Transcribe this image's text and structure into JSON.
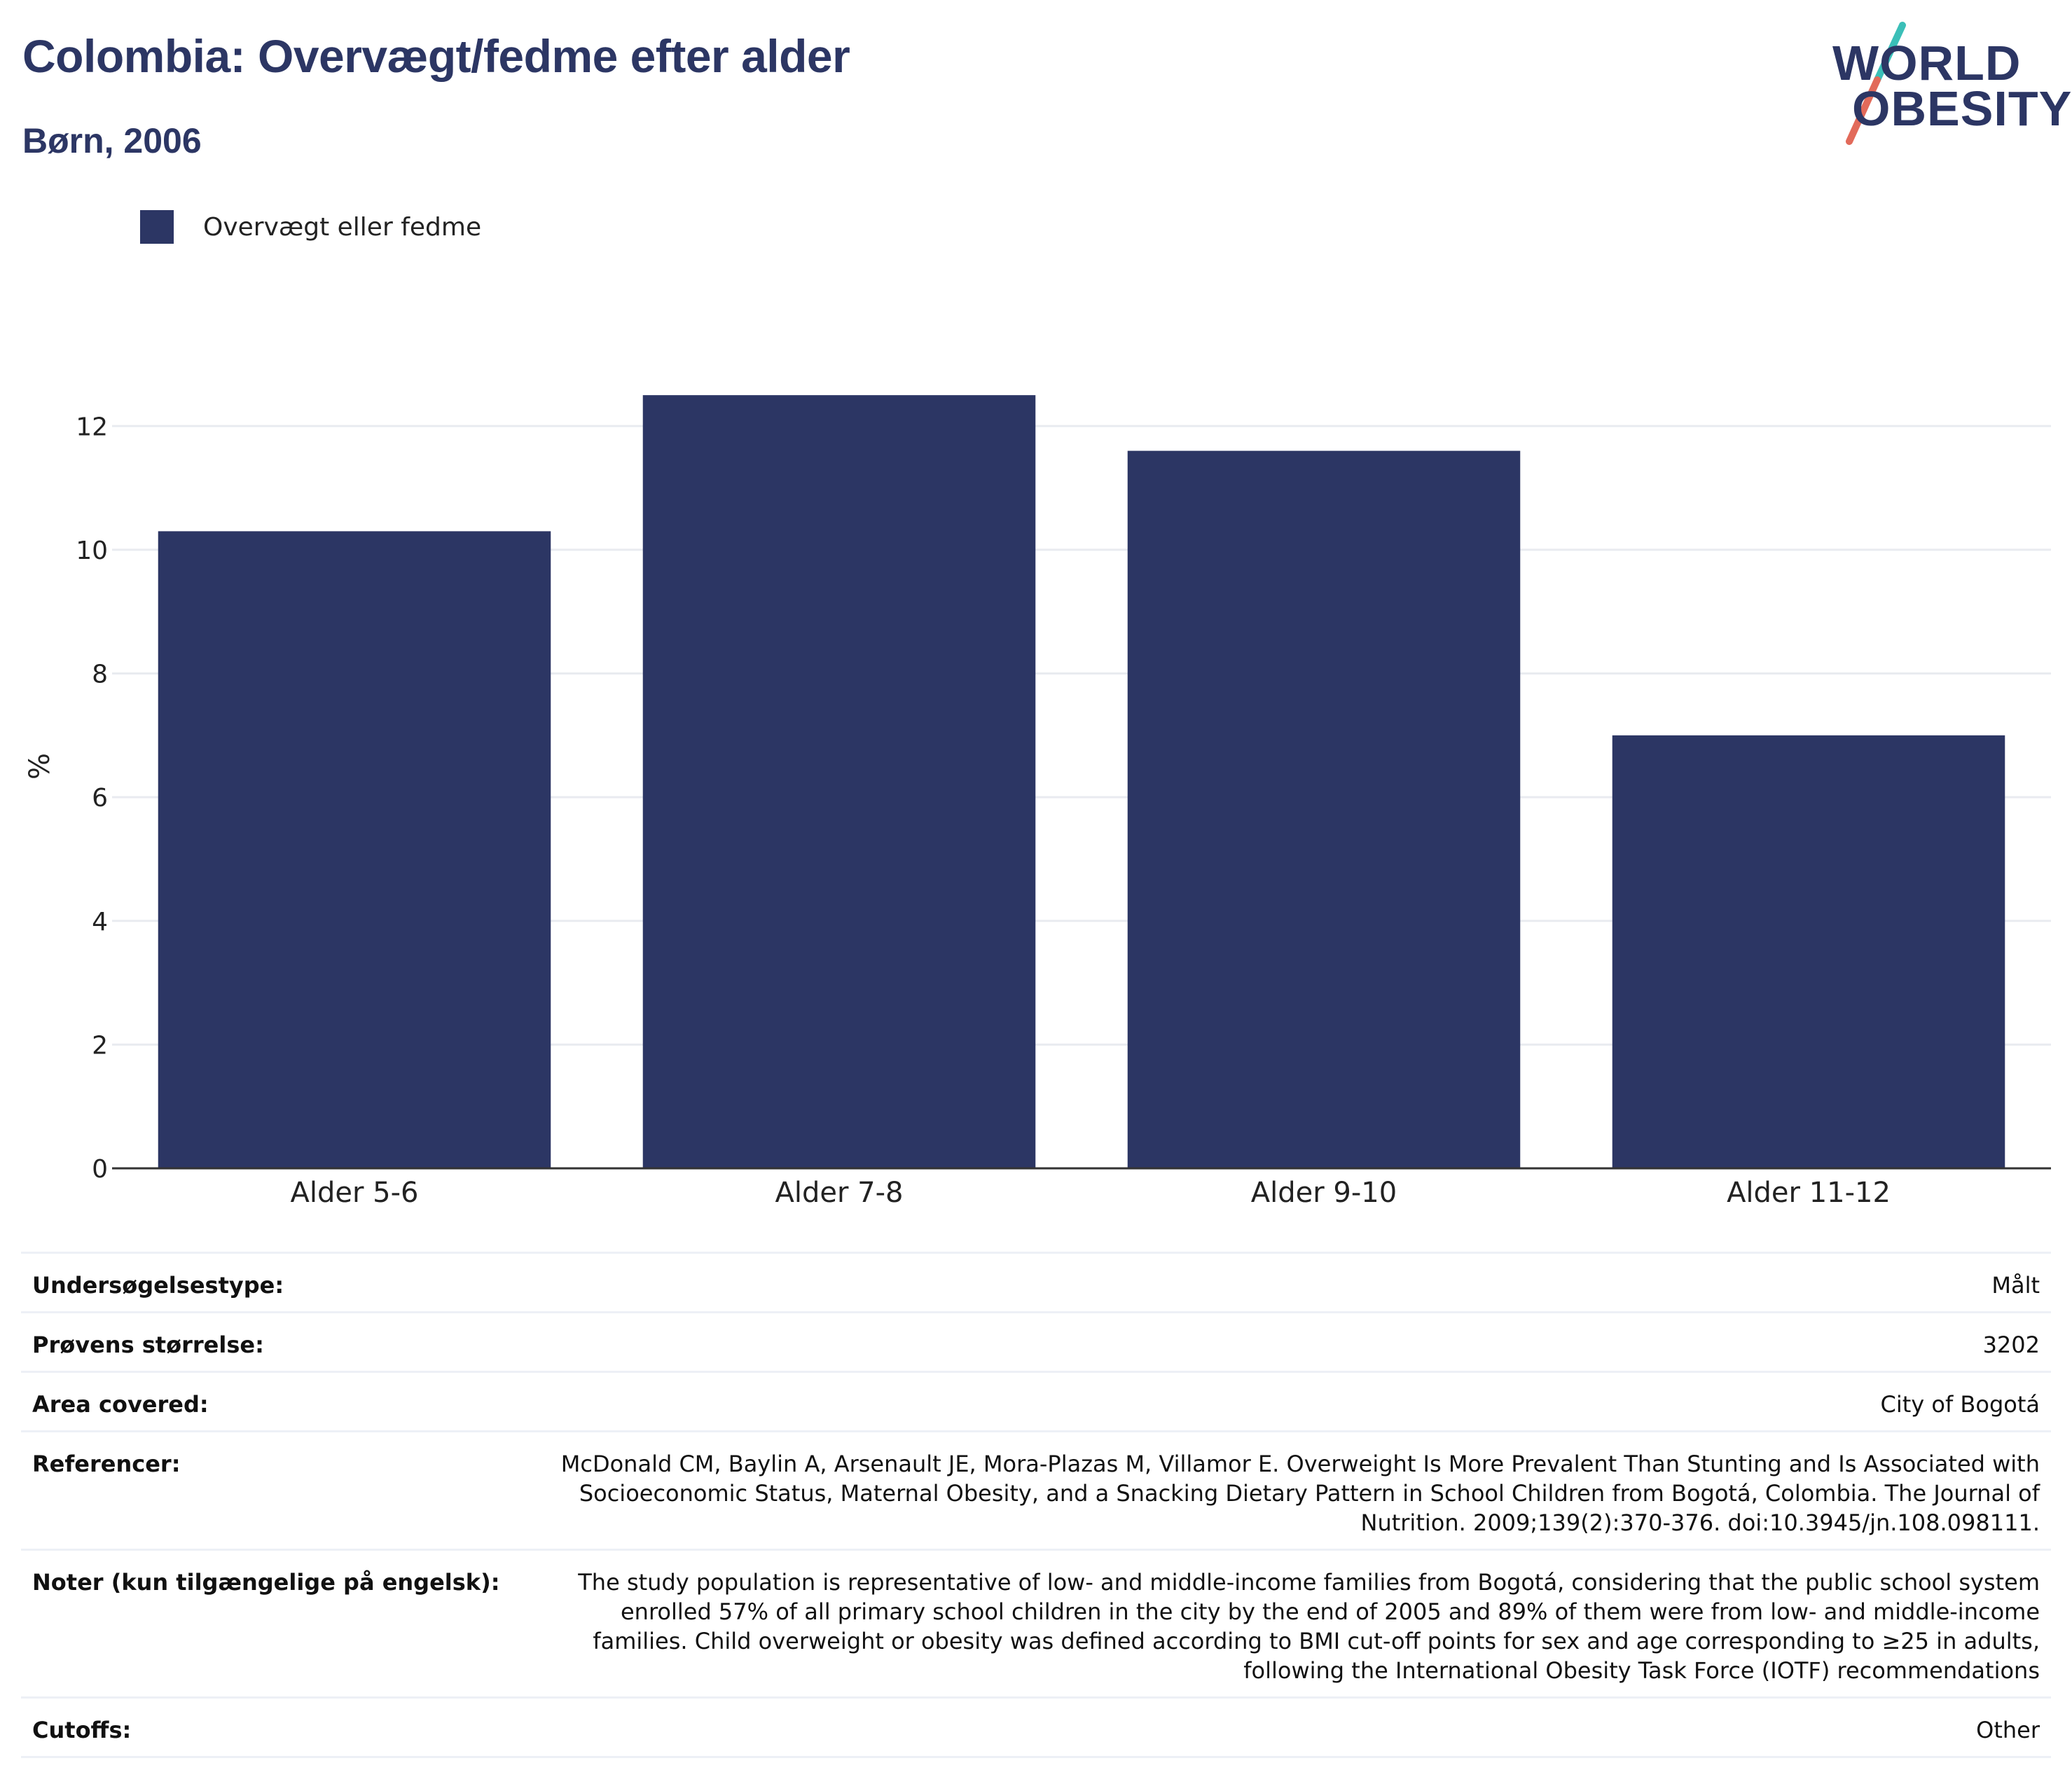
{
  "header": {
    "title": "Colombia: Overvægt/fedme efter alder",
    "subtitle": "Børn, 2006"
  },
  "logo": {
    "line1": "WORLD",
    "line2": "OBESITY",
    "colors": {
      "text": "#2c3664",
      "teal": "#3bbfb8",
      "red": "#e26a5a"
    }
  },
  "colors": {
    "bar": "#2c3664",
    "grid": "#e9ebf0",
    "axis": "#333333"
  },
  "chart_data": {
    "type": "bar",
    "categories": [
      "Alder 5-6",
      "Alder 7-8",
      "Alder 9-10",
      "Alder 11-12"
    ],
    "series": [
      {
        "name": "Overvægt eller fedme",
        "values": [
          10.3,
          12.5,
          11.6,
          7.0
        ]
      }
    ],
    "ylabel": "%",
    "ylim": [
      0,
      13
    ],
    "yticks": [
      0,
      2,
      4,
      6,
      8,
      10,
      12
    ],
    "grid": true,
    "legend_position": "top-left"
  },
  "info": [
    {
      "label": "Undersøgelsestype:",
      "value": "Målt"
    },
    {
      "label": "Prøvens størrelse:",
      "value": "3202"
    },
    {
      "label": "Area covered:",
      "value": "City of Bogotá"
    },
    {
      "label": "Referencer:",
      "value": "McDonald CM, Baylin A, Arsenault JE, Mora-Plazas M, Villamor E. Overweight Is More Prevalent Than Stunting and Is Associated with Socioeconomic Status, Maternal Obesity, and a Snacking Dietary Pattern in School Children from Bogotá, Colombia. The Journal of Nutrition. 2009;139(2):370-376. doi:10.3945/jn.108.098111."
    },
    {
      "label": "Noter (kun tilgængelige på engelsk):",
      "value": "The study population is representative of low- and middle-income families from Bogotá, considering that the public school system enrolled 57% of all primary school children in the city by the end of 2005 and 89% of them were from low- and middle-income families. Child overweight or obesity was defined according to BMI cut-off points for sex and age corresponding to ≥25 in adults, following the International Obesity Task Force (IOTF) recommendations"
    },
    {
      "label": "Cutoffs:",
      "value": "Other"
    }
  ]
}
